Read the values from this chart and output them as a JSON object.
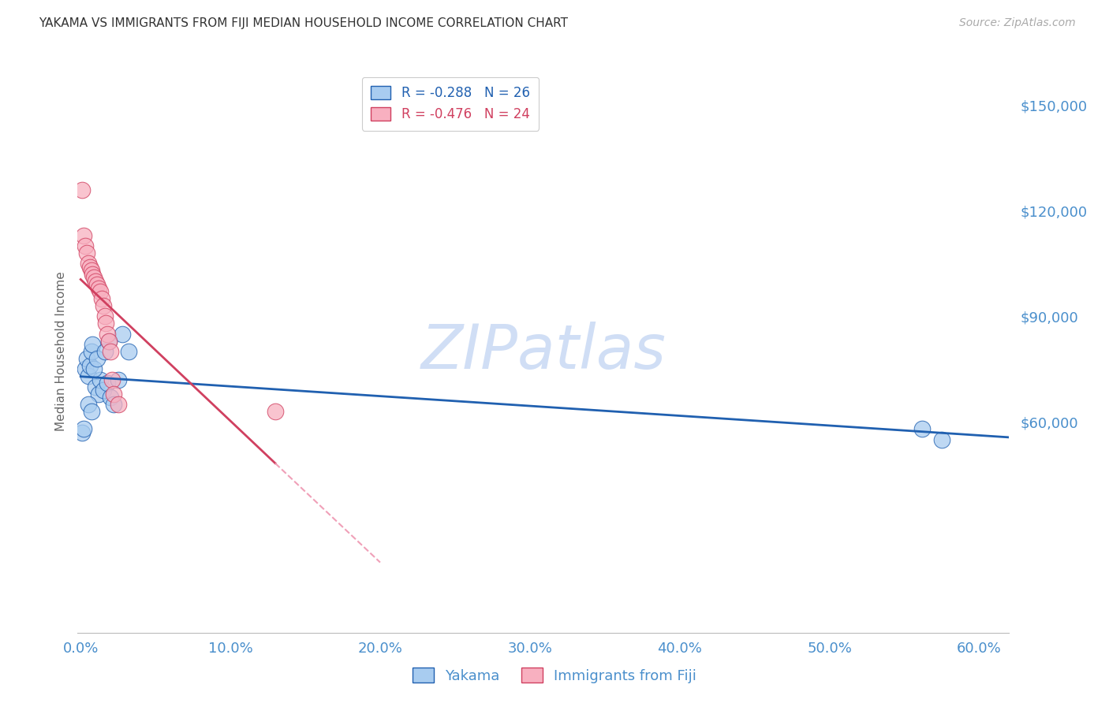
{
  "title": "YAKAMA VS IMMIGRANTS FROM FIJI MEDIAN HOUSEHOLD INCOME CORRELATION CHART",
  "source": "Source: ZipAtlas.com",
  "ylabel": "Median Household Income",
  "ylim": [
    0,
    160000
  ],
  "xlim": [
    -0.002,
    0.62
  ],
  "yakama_color": "#A8CCF0",
  "fiji_color": "#F8B0C0",
  "yakama_line_color": "#2060B0",
  "fiji_line_color": "#D04060",
  "fiji_line_dashed_color": "#F0A0B8",
  "watermark_color": "#D0DEF5",
  "legend_yakama_R": "-0.288",
  "legend_yakama_N": "26",
  "legend_fiji_R": "-0.476",
  "legend_fiji_N": "24",
  "yakama_x": [
    0.001,
    0.002,
    0.003,
    0.004,
    0.005,
    0.006,
    0.007,
    0.008,
    0.01,
    0.012,
    0.013,
    0.015,
    0.018,
    0.02,
    0.022,
    0.025,
    0.005,
    0.007,
    0.009,
    0.011,
    0.016,
    0.019,
    0.028,
    0.032,
    0.562,
    0.575
  ],
  "yakama_y": [
    57000,
    58000,
    75000,
    78000,
    73000,
    76000,
    80000,
    82000,
    70000,
    68000,
    72000,
    69000,
    71000,
    67000,
    65000,
    72000,
    65000,
    63000,
    75000,
    78000,
    80000,
    83000,
    85000,
    80000,
    58000,
    55000
  ],
  "fiji_x": [
    0.001,
    0.002,
    0.003,
    0.004,
    0.005,
    0.006,
    0.007,
    0.008,
    0.009,
    0.01,
    0.011,
    0.012,
    0.013,
    0.014,
    0.015,
    0.016,
    0.017,
    0.018,
    0.019,
    0.02,
    0.021,
    0.022,
    0.025,
    0.13
  ],
  "fiji_y": [
    126000,
    113000,
    110000,
    108000,
    105000,
    104000,
    103000,
    102000,
    101000,
    100000,
    99000,
    98000,
    97000,
    95000,
    93000,
    90000,
    88000,
    85000,
    83000,
    80000,
    72000,
    68000,
    65000,
    63000
  ],
  "grid_color": "#DDDDDD",
  "background_color": "#FFFFFF",
  "title_fontsize": 11,
  "tick_label_color": "#4A8FCC",
  "ylabel_color": "#666666",
  "xtick_labels": [
    "0.0%",
    "10.0%",
    "20.0%",
    "30.0%",
    "40.0%",
    "50.0%",
    "60.0%"
  ],
  "xtick_vals": [
    0.0,
    0.1,
    0.2,
    0.3,
    0.4,
    0.5,
    0.6
  ]
}
